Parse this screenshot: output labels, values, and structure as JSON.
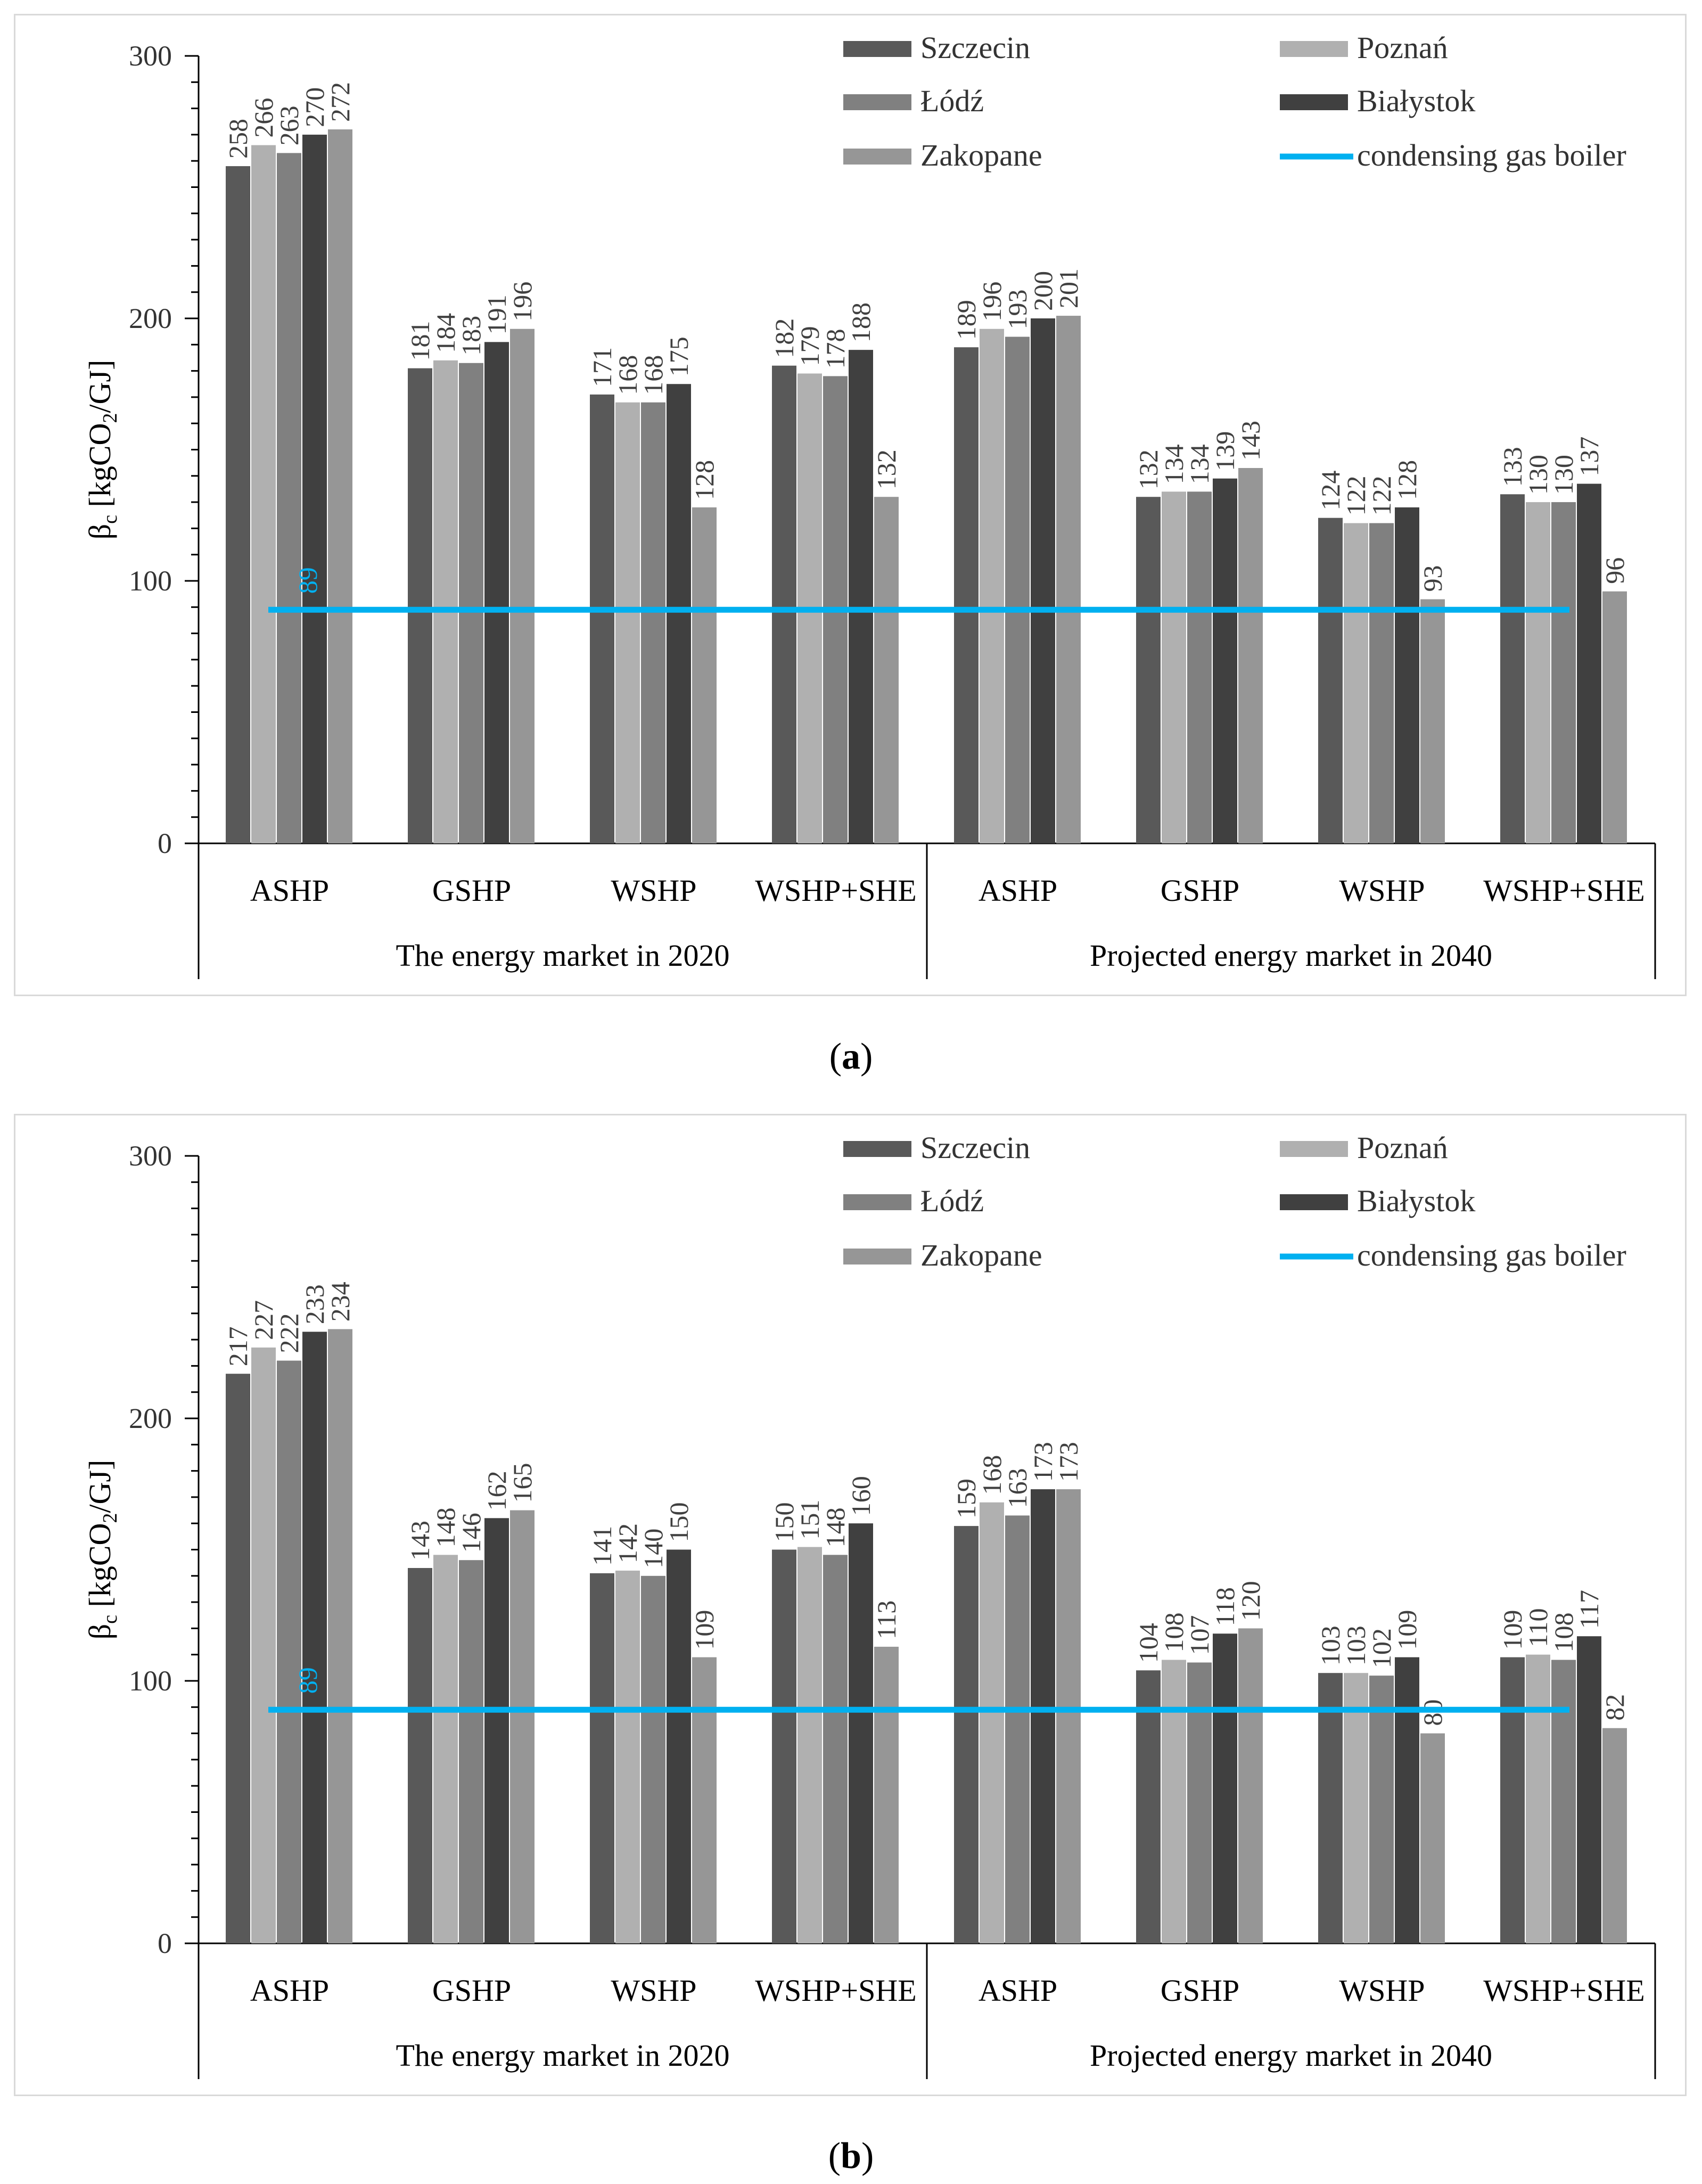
{
  "chart_data": [
    {
      "type": "bar",
      "caption_letter": "a",
      "ylabel_main": "β",
      "ylabel_sub": "c",
      "ylabel_unit_pre": " [kgCO",
      "ylabel_unit_sub": "2",
      "ylabel_unit_post": "/GJ]",
      "ylim": [
        0,
        300
      ],
      "yticks": [
        0,
        100,
        200,
        300
      ],
      "categories": [
        "ASHP",
        "GSHP",
        "WSHP",
        "WSHP+SHE",
        "ASHP",
        "GSHP",
        "WSHP",
        "WSHP+SHE"
      ],
      "groups": [
        "The energy market in 2020",
        "Projected energy market in 2040"
      ],
      "series": [
        {
          "name": "Szczecin",
          "color": "#595959",
          "values": [
            258,
            181,
            171,
            182,
            189,
            132,
            124,
            133
          ]
        },
        {
          "name": "Poznań",
          "color": "#b0b0b0",
          "values": [
            266,
            184,
            168,
            179,
            196,
            134,
            122,
            130
          ]
        },
        {
          "name": "Łódź",
          "color": "#808080",
          "values": [
            263,
            183,
            168,
            178,
            193,
            134,
            122,
            130
          ]
        },
        {
          "name": "Białystok",
          "color": "#404040",
          "values": [
            270,
            191,
            175,
            188,
            200,
            139,
            128,
            137
          ]
        },
        {
          "name": "Zakopane",
          "color": "#969696",
          "values": [
            272,
            196,
            128,
            132,
            201,
            143,
            93,
            96
          ]
        }
      ],
      "reference_line": {
        "name": "condensing gas boiler",
        "value": 89,
        "label": "89",
        "color": "#00b0f0"
      },
      "legend_position": "top-right"
    },
    {
      "type": "bar",
      "caption_letter": "b",
      "ylabel_main": "β",
      "ylabel_sub": "c",
      "ylabel_unit_pre": " [kgCO",
      "ylabel_unit_sub": "2",
      "ylabel_unit_post": "/GJ]",
      "ylim": [
        0,
        300
      ],
      "yticks": [
        0,
        100,
        200,
        300
      ],
      "categories": [
        "ASHP",
        "GSHP",
        "WSHP",
        "WSHP+SHE",
        "ASHP",
        "GSHP",
        "WSHP",
        "WSHP+SHE"
      ],
      "groups": [
        "The energy market in 2020",
        "Projected energy market in 2040"
      ],
      "series": [
        {
          "name": "Szczecin",
          "color": "#595959",
          "values": [
            217,
            143,
            141,
            150,
            159,
            104,
            103,
            109
          ]
        },
        {
          "name": "Poznań",
          "color": "#b0b0b0",
          "values": [
            227,
            148,
            142,
            151,
            168,
            108,
            103,
            110
          ]
        },
        {
          "name": "Łódź",
          "color": "#808080",
          "values": [
            222,
            146,
            140,
            148,
            163,
            107,
            102,
            108
          ]
        },
        {
          "name": "Białystok",
          "color": "#404040",
          "values": [
            233,
            162,
            150,
            160,
            173,
            118,
            109,
            117
          ]
        },
        {
          "name": "Zakopane",
          "color": "#969696",
          "values": [
            234,
            165,
            109,
            113,
            173,
            120,
            80,
            82
          ]
        }
      ],
      "reference_line": {
        "name": "condensing gas boiler",
        "value": 89,
        "label": "89",
        "color": "#00b0f0"
      },
      "legend_position": "top-right"
    }
  ]
}
